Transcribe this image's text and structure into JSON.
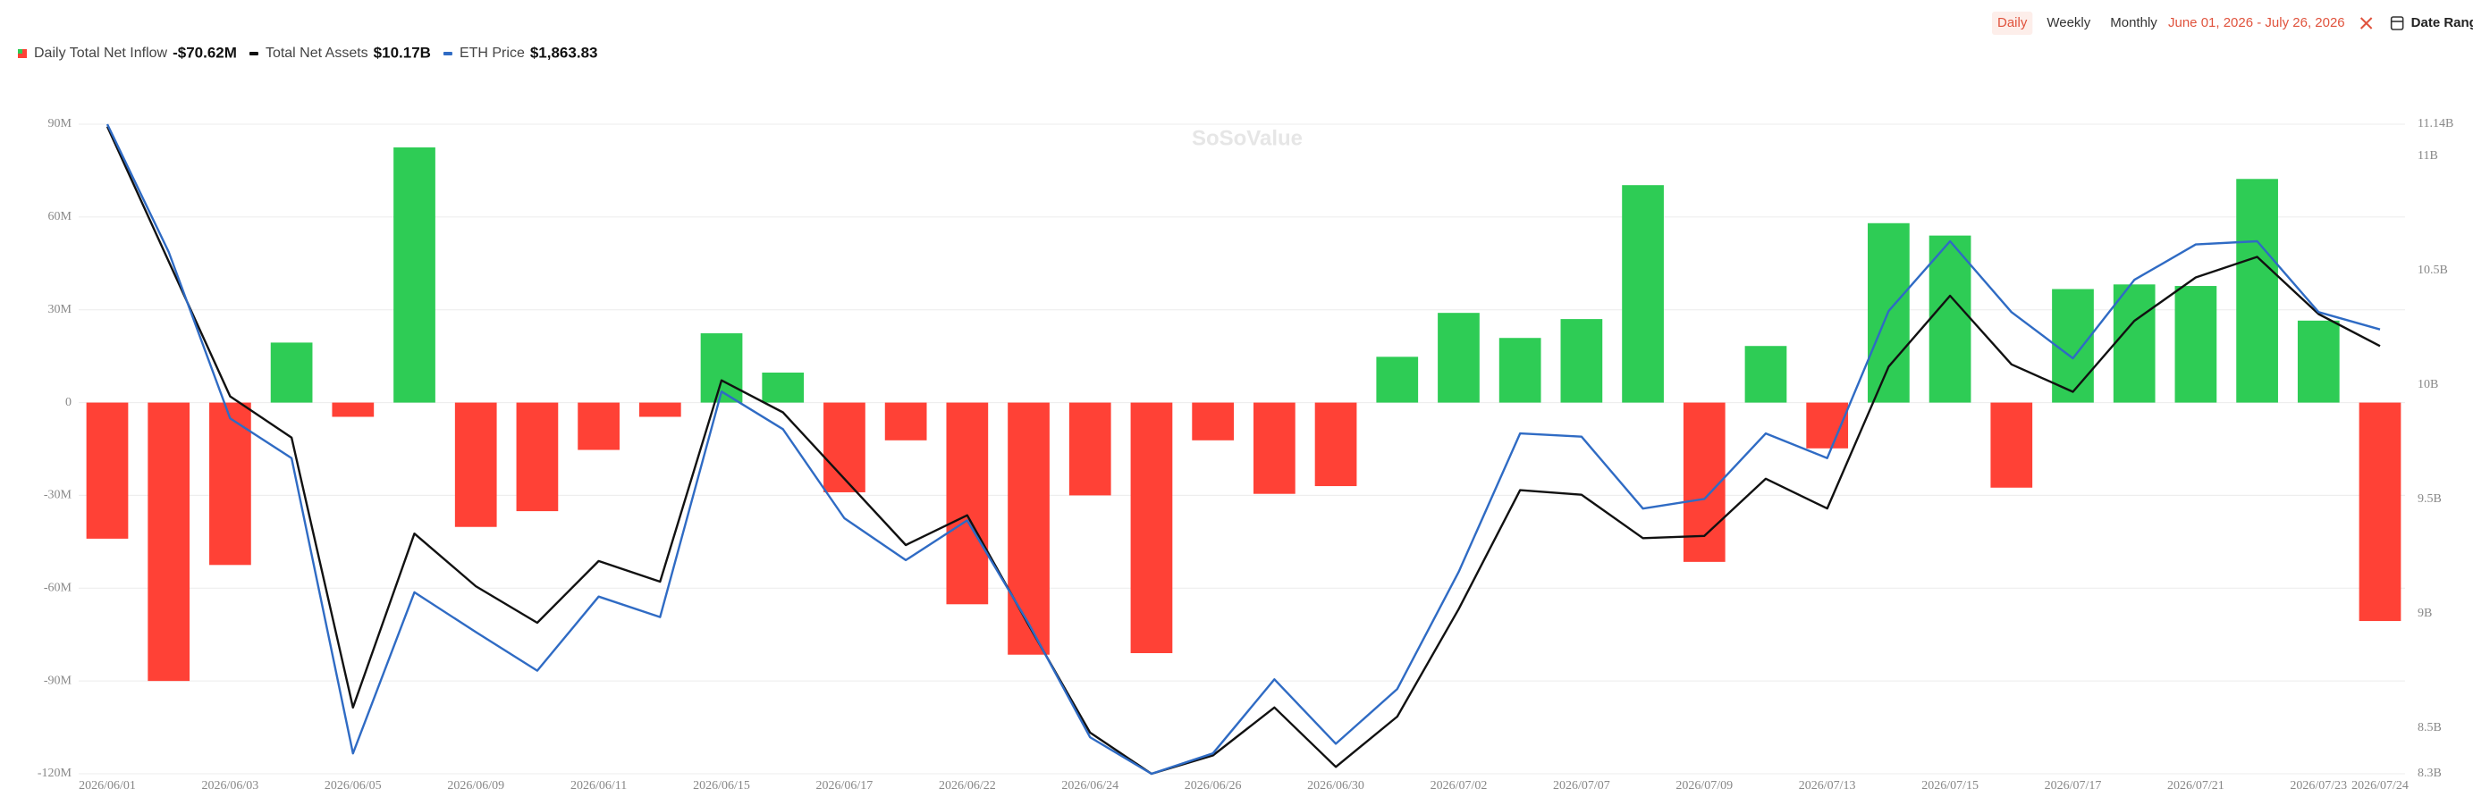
{
  "chart_data": {
    "type": "bar",
    "categories": [
      "2026/06/01",
      null,
      "2026/06/03",
      null,
      "2026/06/05",
      null,
      "2026/06/09",
      null,
      "2026/06/11",
      null,
      "2026/06/15",
      null,
      "2026/06/17",
      null,
      "2026/06/22",
      null,
      "2026/06/24",
      null,
      "2026/06/26",
      null,
      "2026/06/30",
      null,
      "2026/07/02",
      null,
      "2026/07/07",
      null,
      "2026/07/09",
      null,
      "2026/07/13",
      null,
      "2026/07/15",
      null,
      "2026/07/17",
      null,
      "2026/07/21",
      null,
      "2026/07/23",
      "2026/07/24"
    ],
    "series": [
      {
        "name": "Daily Total Net Inflow",
        "summary": "-$70.62M",
        "type": "bar",
        "color": "#ff4136",
        "color_positive": "#2ecc55",
        "values": [
          -44,
          -90,
          -52.5,
          19.4,
          -4.6,
          82.5,
          -40.2,
          -35.1,
          -15.3,
          -4.6,
          22.4,
          9.7,
          -29,
          -12.2,
          -65.2,
          -81.5,
          -30,
          -81,
          -12.2,
          -29.5,
          -27,
          14.8,
          29,
          20.9,
          27,
          70.3,
          -51.5,
          18.3,
          -14.8,
          58,
          54,
          -27.5,
          36.7,
          38.2,
          37.7,
          72.3,
          26.5,
          -70.62
        ]
      },
      {
        "name": "Total Net Assets",
        "summary": "$10.17B",
        "type": "line",
        "color": "#111111",
        "axis": "y2",
        "values": [
          11.13,
          10.54,
          9.95,
          9.77,
          8.59,
          9.35,
          9.12,
          8.96,
          9.23,
          9.14,
          10.02,
          9.88,
          9.59,
          9.3,
          9.43,
          8.95,
          8.48,
          8.3,
          8.38,
          8.59,
          8.33,
          8.55,
          9.02,
          9.54,
          9.52,
          9.33,
          9.34,
          9.59,
          9.46,
          10.08,
          10.39,
          10.09,
          9.97,
          10.28,
          10.47,
          10.56,
          10.31,
          10.17
        ]
      },
      {
        "name": "ETH Price",
        "summary": "$1,863.83",
        "type": "line",
        "color": "#2f6bc4",
        "values": [
          2055,
          1936,
          1781,
          1744,
          1469,
          1619,
          1582,
          1546,
          1615,
          1596,
          1806,
          1771,
          1688,
          1649,
          1686,
          1590,
          1484,
          1450,
          1469,
          1538,
          1478,
          1529,
          1638,
          1767,
          1764,
          1697,
          1706,
          1767,
          1744,
          1881,
          1946,
          1880,
          1837,
          1910,
          1943,
          1946,
          1880,
          1863.83
        ]
      }
    ],
    "ylim": [
      -120,
      90
    ],
    "yticks": [
      {
        "value": -120,
        "label": "-120M"
      },
      {
        "value": -90,
        "label": "-90M"
      },
      {
        "value": -60,
        "label": "-60M"
      },
      {
        "value": -30,
        "label": "-30M"
      },
      {
        "value": 0,
        "label": "0"
      },
      {
        "value": 30,
        "label": "30M"
      },
      {
        "value": 60,
        "label": "60M"
      },
      {
        "value": 90,
        "label": "90M"
      }
    ],
    "y2lim": [
      8.3,
      11.14
    ],
    "y2ticks": [
      {
        "value": 8.3,
        "label": "8.3B"
      },
      {
        "value": 8.5,
        "label": "8.5B"
      },
      {
        "value": 9,
        "label": "9B"
      },
      {
        "value": 9.5,
        "label": "9.5B"
      },
      {
        "value": 10,
        "label": "10B"
      },
      {
        "value": 10.5,
        "label": "10.5B"
      },
      {
        "value": 11,
        "label": "11B"
      },
      {
        "value": 11.14,
        "label": "11.14B"
      }
    ],
    "grid": true,
    "watermark": "SoSoValue",
    "controls": {
      "periods": [
        "Daily",
        "Weekly",
        "Monthly"
      ],
      "active_period": 0,
      "date_range": "June 01, 2026 - July 26, 2026",
      "date_range_button": "Date Range"
    }
  }
}
